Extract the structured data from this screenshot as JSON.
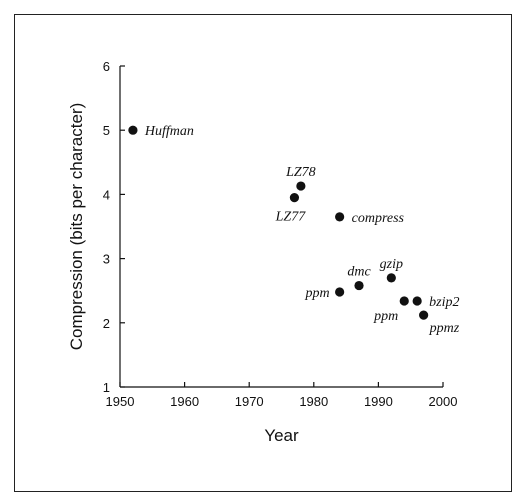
{
  "chart_data": {
    "type": "scatter",
    "title": "",
    "xlabel": "Year",
    "ylabel": "Compression (bits per character)",
    "xlim": [
      1950,
      2000
    ],
    "ylim": [
      1,
      6
    ],
    "xticks": [
      1950,
      1960,
      1970,
      1980,
      1990,
      2000
    ],
    "yticks": [
      1,
      2,
      3,
      4,
      5,
      6
    ],
    "grid": false,
    "legend": "none",
    "points": [
      {
        "label": "Huffman",
        "x": 1952,
        "y": 5.0,
        "label_side": "right"
      },
      {
        "label": "LZ78",
        "x": 1978,
        "y": 4.13,
        "label_side": "above"
      },
      {
        "label": "LZ77",
        "x": 1977,
        "y": 3.95,
        "label_side": "below"
      },
      {
        "label": "compress",
        "x": 1984,
        "y": 3.65,
        "label_side": "right"
      },
      {
        "label": "ppm",
        "x": 1984,
        "y": 2.48,
        "label_side": "left"
      },
      {
        "label": "dmc",
        "x": 1987,
        "y": 2.58,
        "label_side": "above"
      },
      {
        "label": "gzip",
        "x": 1992,
        "y": 2.7,
        "label_side": "above"
      },
      {
        "label": "ppm",
        "x": 1994,
        "y": 2.34,
        "label_side": "below-left"
      },
      {
        "label": "bzip2",
        "x": 1996,
        "y": 2.34,
        "label_side": "right"
      },
      {
        "label": "ppmz",
        "x": 1997,
        "y": 2.12,
        "label_side": "below-right"
      }
    ]
  }
}
